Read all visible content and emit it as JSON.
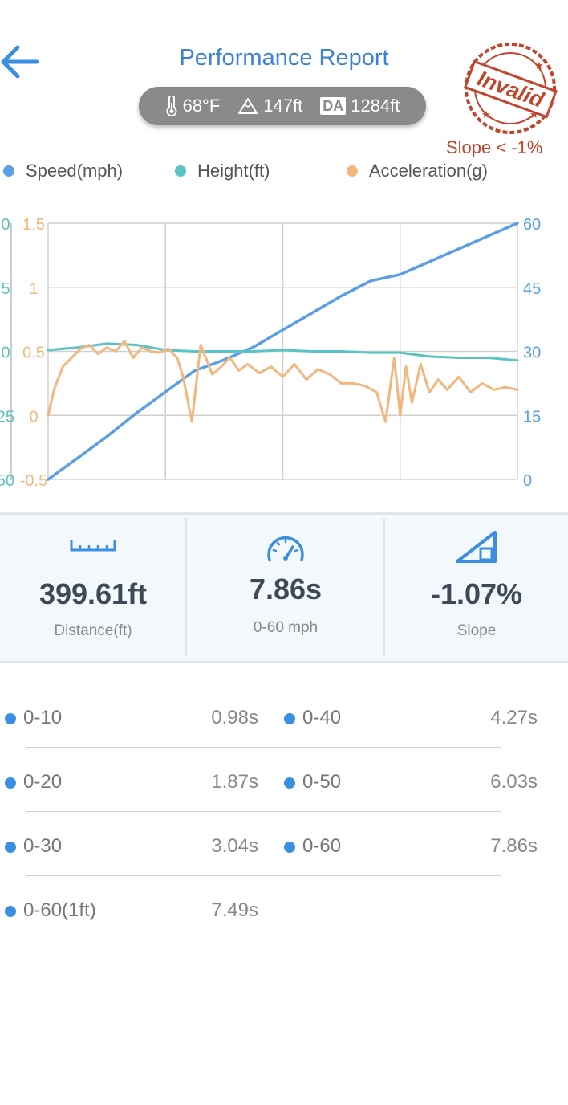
{
  "header": {
    "title": "Performance Report"
  },
  "conditions": {
    "temperature": "68°F",
    "altitude": "147ft",
    "density_altitude_badge": "DA",
    "density_altitude": "1284ft"
  },
  "stamp": {
    "text": "Invalid",
    "note": "Slope < -1%"
  },
  "legend": [
    {
      "label": "Speed(mph)",
      "color": "#5b9ee6"
    },
    {
      "label": "Height(ft)",
      "color": "#5cc3c3"
    },
    {
      "label": "Acceleration(g)",
      "color": "#f2b77f"
    }
  ],
  "chart_data": {
    "type": "line",
    "x_range": [
      0,
      8
    ],
    "axes": {
      "speed_right": {
        "ticks": [
          "60",
          "45",
          "30",
          "15",
          "0"
        ],
        "range": [
          0,
          60
        ],
        "color": "#5b9ee6"
      },
      "accel_left": {
        "ticks": [
          "1.5",
          "1",
          "0.5",
          "0",
          "-0.5"
        ],
        "range": [
          -0.5,
          1.5
        ],
        "color": "#f2b77f"
      },
      "height_left": {
        "ticks": [
          "0",
          "5",
          "0",
          "25",
          "50"
        ],
        "color": "#5cc3c3"
      }
    },
    "series": [
      {
        "name": "Speed(mph)",
        "axis": "speed_right",
        "color": "#5b9ee6",
        "x": [
          0,
          0.5,
          1,
          1.5,
          2,
          2.5,
          3,
          3.5,
          4,
          4.5,
          5,
          5.5,
          6,
          6.5,
          7,
          7.5,
          8
        ],
        "y": [
          0,
          5,
          10,
          15.5,
          20.5,
          25.5,
          28,
          31,
          35,
          39,
          43,
          46.5,
          48,
          51,
          54,
          57,
          60
        ]
      },
      {
        "name": "Height(ft)",
        "axis": "accel_left",
        "color": "#5cc3c3",
        "x": [
          0,
          0.5,
          1,
          1.5,
          2,
          2.5,
          3,
          3.5,
          4,
          4.5,
          5,
          5.5,
          6,
          6.5,
          7,
          7.5,
          8
        ],
        "y": [
          0.51,
          0.53,
          0.56,
          0.55,
          0.51,
          0.5,
          0.5,
          0.5,
          0.51,
          0.5,
          0.5,
          0.49,
          0.49,
          0.46,
          0.45,
          0.45,
          0.43
        ]
      },
      {
        "name": "Acceleration(g)",
        "axis": "accel_left",
        "color": "#f2b77f",
        "x": [
          0,
          0.1,
          0.25,
          0.4,
          0.55,
          0.7,
          0.85,
          1.0,
          1.15,
          1.3,
          1.45,
          1.6,
          1.75,
          1.9,
          2.05,
          2.2,
          2.3,
          2.45,
          2.6,
          2.8,
          2.95,
          3.1,
          3.25,
          3.4,
          3.6,
          3.8,
          4.0,
          4.2,
          4.4,
          4.6,
          4.8,
          5.0,
          5.2,
          5.4,
          5.6,
          5.75,
          5.9,
          6.0,
          6.1,
          6.2,
          6.35,
          6.5,
          6.65,
          6.8,
          7.0,
          7.2,
          7.4,
          7.6,
          7.8,
          8.0
        ],
        "y": [
          0,
          0.2,
          0.38,
          0.45,
          0.52,
          0.55,
          0.48,
          0.53,
          0.5,
          0.58,
          0.45,
          0.53,
          0.5,
          0.49,
          0.52,
          0.45,
          0.3,
          -0.05,
          0.55,
          0.32,
          0.38,
          0.45,
          0.35,
          0.4,
          0.33,
          0.38,
          0.3,
          0.4,
          0.28,
          0.36,
          0.32,
          0.25,
          0.25,
          0.23,
          0.18,
          -0.05,
          0.45,
          0.0,
          0.38,
          0.1,
          0.4,
          0.18,
          0.28,
          0.2,
          0.3,
          0.18,
          0.25,
          0.2,
          0.22,
          0.2
        ]
      }
    ]
  },
  "stats": [
    {
      "value": "399.61ft",
      "label": "Distance(ft)",
      "icon": "ruler-icon"
    },
    {
      "value": "7.86s",
      "label": "0-60 mph",
      "icon": "speedometer-icon"
    },
    {
      "value": "-1.07%",
      "label": "Slope",
      "icon": "slope-icon"
    }
  ],
  "splits": [
    {
      "name": "0-10",
      "time": "0.98s"
    },
    {
      "name": "0-40",
      "time": "4.27s"
    },
    {
      "name": "0-20",
      "time": "1.87s"
    },
    {
      "name": "0-50",
      "time": "6.03s"
    },
    {
      "name": "0-30",
      "time": "3.04s"
    },
    {
      "name": "0-60",
      "time": "7.86s"
    },
    {
      "name": "0-60(1ft)",
      "time": "7.49s"
    }
  ]
}
